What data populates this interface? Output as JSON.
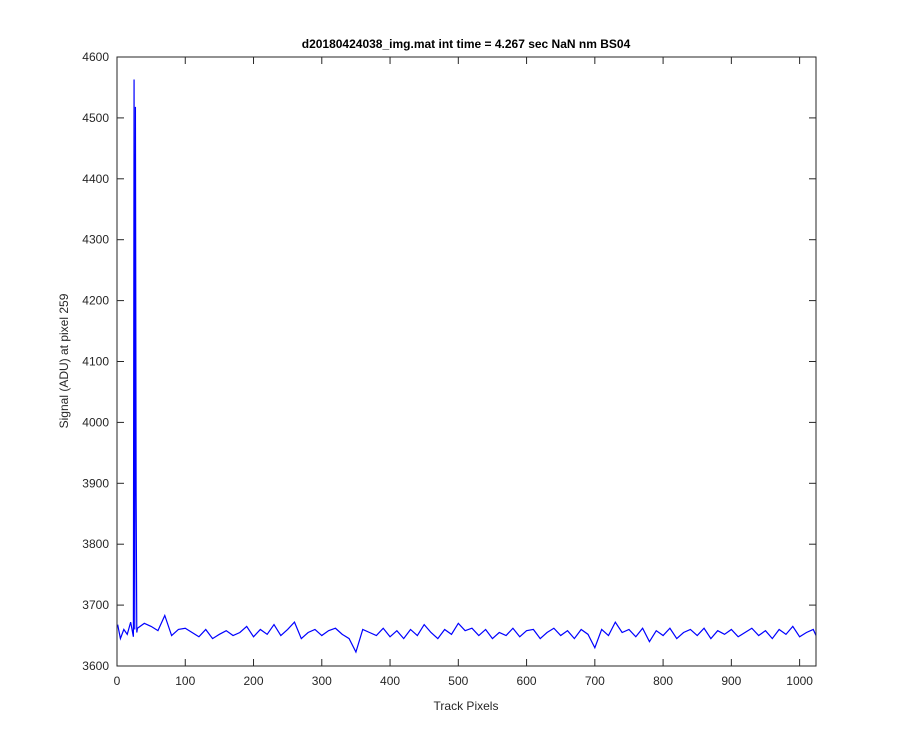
{
  "chart_data": {
    "type": "line",
    "title": "d20180424038_img.mat int time = 4.267 sec  NaN nm BS04",
    "xlabel": "Track Pixels",
    "ylabel": "Signal (ADU) at pixel 259",
    "xlim": [
      0,
      1024
    ],
    "ylim": [
      3600,
      4600
    ],
    "xticks": [
      0,
      100,
      200,
      300,
      400,
      500,
      600,
      700,
      800,
      900,
      1000
    ],
    "yticks": [
      3600,
      3700,
      3800,
      3900,
      4000,
      4100,
      4200,
      4300,
      4400,
      4500,
      4600
    ],
    "grid": false,
    "x": [
      1,
      5,
      10,
      15,
      20,
      24,
      25,
      26,
      27,
      28,
      29,
      30,
      40,
      50,
      60,
      70,
      80,
      90,
      100,
      110,
      120,
      130,
      140,
      150,
      160,
      170,
      180,
      190,
      200,
      210,
      220,
      230,
      240,
      250,
      260,
      270,
      280,
      290,
      300,
      310,
      320,
      330,
      340,
      350,
      360,
      370,
      380,
      390,
      400,
      410,
      420,
      430,
      440,
      450,
      460,
      470,
      480,
      490,
      500,
      510,
      520,
      530,
      540,
      550,
      560,
      570,
      580,
      590,
      600,
      610,
      620,
      630,
      640,
      650,
      660,
      670,
      680,
      690,
      700,
      710,
      720,
      730,
      740,
      750,
      760,
      770,
      780,
      790,
      800,
      810,
      820,
      830,
      840,
      850,
      860,
      870,
      880,
      890,
      900,
      910,
      920,
      930,
      940,
      950,
      960,
      970,
      980,
      990,
      1000,
      1010,
      1020,
      1024
    ],
    "series": [
      {
        "name": "signal",
        "color": "#0000ff",
        "values": [
          3668,
          3645,
          3660,
          3652,
          3672,
          3648,
          4563,
          3660,
          4518,
          3885,
          3655,
          3662,
          3670,
          3665,
          3658,
          3683,
          3650,
          3660,
          3662,
          3655,
          3648,
          3660,
          3645,
          3652,
          3658,
          3650,
          3655,
          3665,
          3648,
          3660,
          3652,
          3668,
          3650,
          3660,
          3672,
          3645,
          3655,
          3660,
          3650,
          3658,
          3662,
          3652,
          3645,
          3623,
          3660,
          3655,
          3650,
          3662,
          3648,
          3658,
          3645,
          3660,
          3650,
          3668,
          3655,
          3645,
          3660,
          3652,
          3670,
          3658,
          3662,
          3650,
          3660,
          3645,
          3655,
          3650,
          3662,
          3648,
          3658,
          3660,
          3645,
          3655,
          3662,
          3650,
          3658,
          3645,
          3660,
          3652,
          3630,
          3660,
          3650,
          3672,
          3655,
          3660,
          3648,
          3662,
          3640,
          3658,
          3650,
          3662,
          3645,
          3655,
          3660,
          3650,
          3662,
          3645,
          3658,
          3652,
          3660,
          3648,
          3655,
          3662,
          3650,
          3658,
          3645,
          3660,
          3652,
          3665,
          3648,
          3655,
          3660,
          3650
        ]
      }
    ]
  }
}
